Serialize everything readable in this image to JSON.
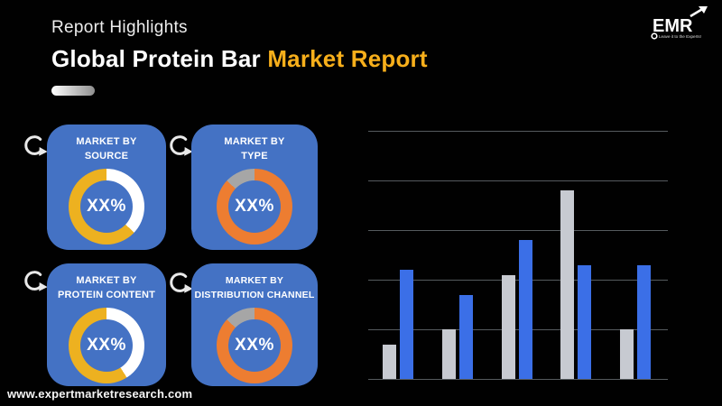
{
  "colors": {
    "background": "#010101",
    "accent": "#F7AF1B",
    "card_blue": "#4472C4",
    "ring_yellow": "#EDB120",
    "ring_orange": "#ED7D31",
    "ring_white": "#FFFFFF",
    "ring_gray": "#A6A6A6",
    "bar_gray": "#C7CAD1",
    "bar_blue": "#3B6FE7",
    "grid_color": "#555A5E"
  },
  "header": {
    "eyebrow": "Report Highlights",
    "title_white": "Global Protein Bar",
    "title_accent": "Market Report"
  },
  "logo": {
    "text": "EMR",
    "tagline": "Leave it to the Experts!"
  },
  "footer": {
    "website": "www.expertmarketresearch.com"
  },
  "cards": [
    {
      "title_top": "MARKET BY",
      "title_bottom": "SOURCE",
      "value": "XX%",
      "ring": {
        "segments": [
          {
            "color": "#FFFFFF",
            "pct": 37
          },
          {
            "color": "#EDB120",
            "pct": 63
          }
        ]
      }
    },
    {
      "title_top": "MARKET BY",
      "title_bottom": "TYPE",
      "value": "XX%",
      "ring": {
        "segments": [
          {
            "color": "#ED7D31",
            "pct": 87
          },
          {
            "color": "#A6A6A6",
            "pct": 13
          }
        ]
      }
    },
    {
      "title_top": "MARKET BY",
      "title_bottom": "PROTEIN CONTENT",
      "value": "XX%",
      "ring": {
        "segments": [
          {
            "color": "#FFFFFF",
            "pct": 41
          },
          {
            "color": "#EDB120",
            "pct": 59
          }
        ]
      }
    },
    {
      "title_top": "MARKET BY",
      "title_bottom": "DISTRIBUTION CHANNEL",
      "value": "XX%",
      "ring": {
        "segments": [
          {
            "color": "#ED7D31",
            "pct": 87
          },
          {
            "color": "#A6A6A6",
            "pct": 13
          }
        ]
      }
    }
  ],
  "chart_data": {
    "type": "bar",
    "title": "",
    "xlabel": "",
    "ylabel": "",
    "categories": [
      "",
      "",
      "",
      "",
      ""
    ],
    "series": [
      {
        "name": "gray-series",
        "color": "#C7CAD1",
        "values": [
          0.7,
          1.0,
          2.1,
          3.8,
          1.0
        ]
      },
      {
        "name": "blue-series",
        "color": "#3B6FE7",
        "values": [
          2.2,
          1.7,
          2.8,
          2.3,
          2.3
        ]
      }
    ],
    "ylim": [
      0,
      5
    ],
    "gridline_count": 6,
    "grid_on": true,
    "legend": "none",
    "axis_tick_labels_visible": false
  }
}
